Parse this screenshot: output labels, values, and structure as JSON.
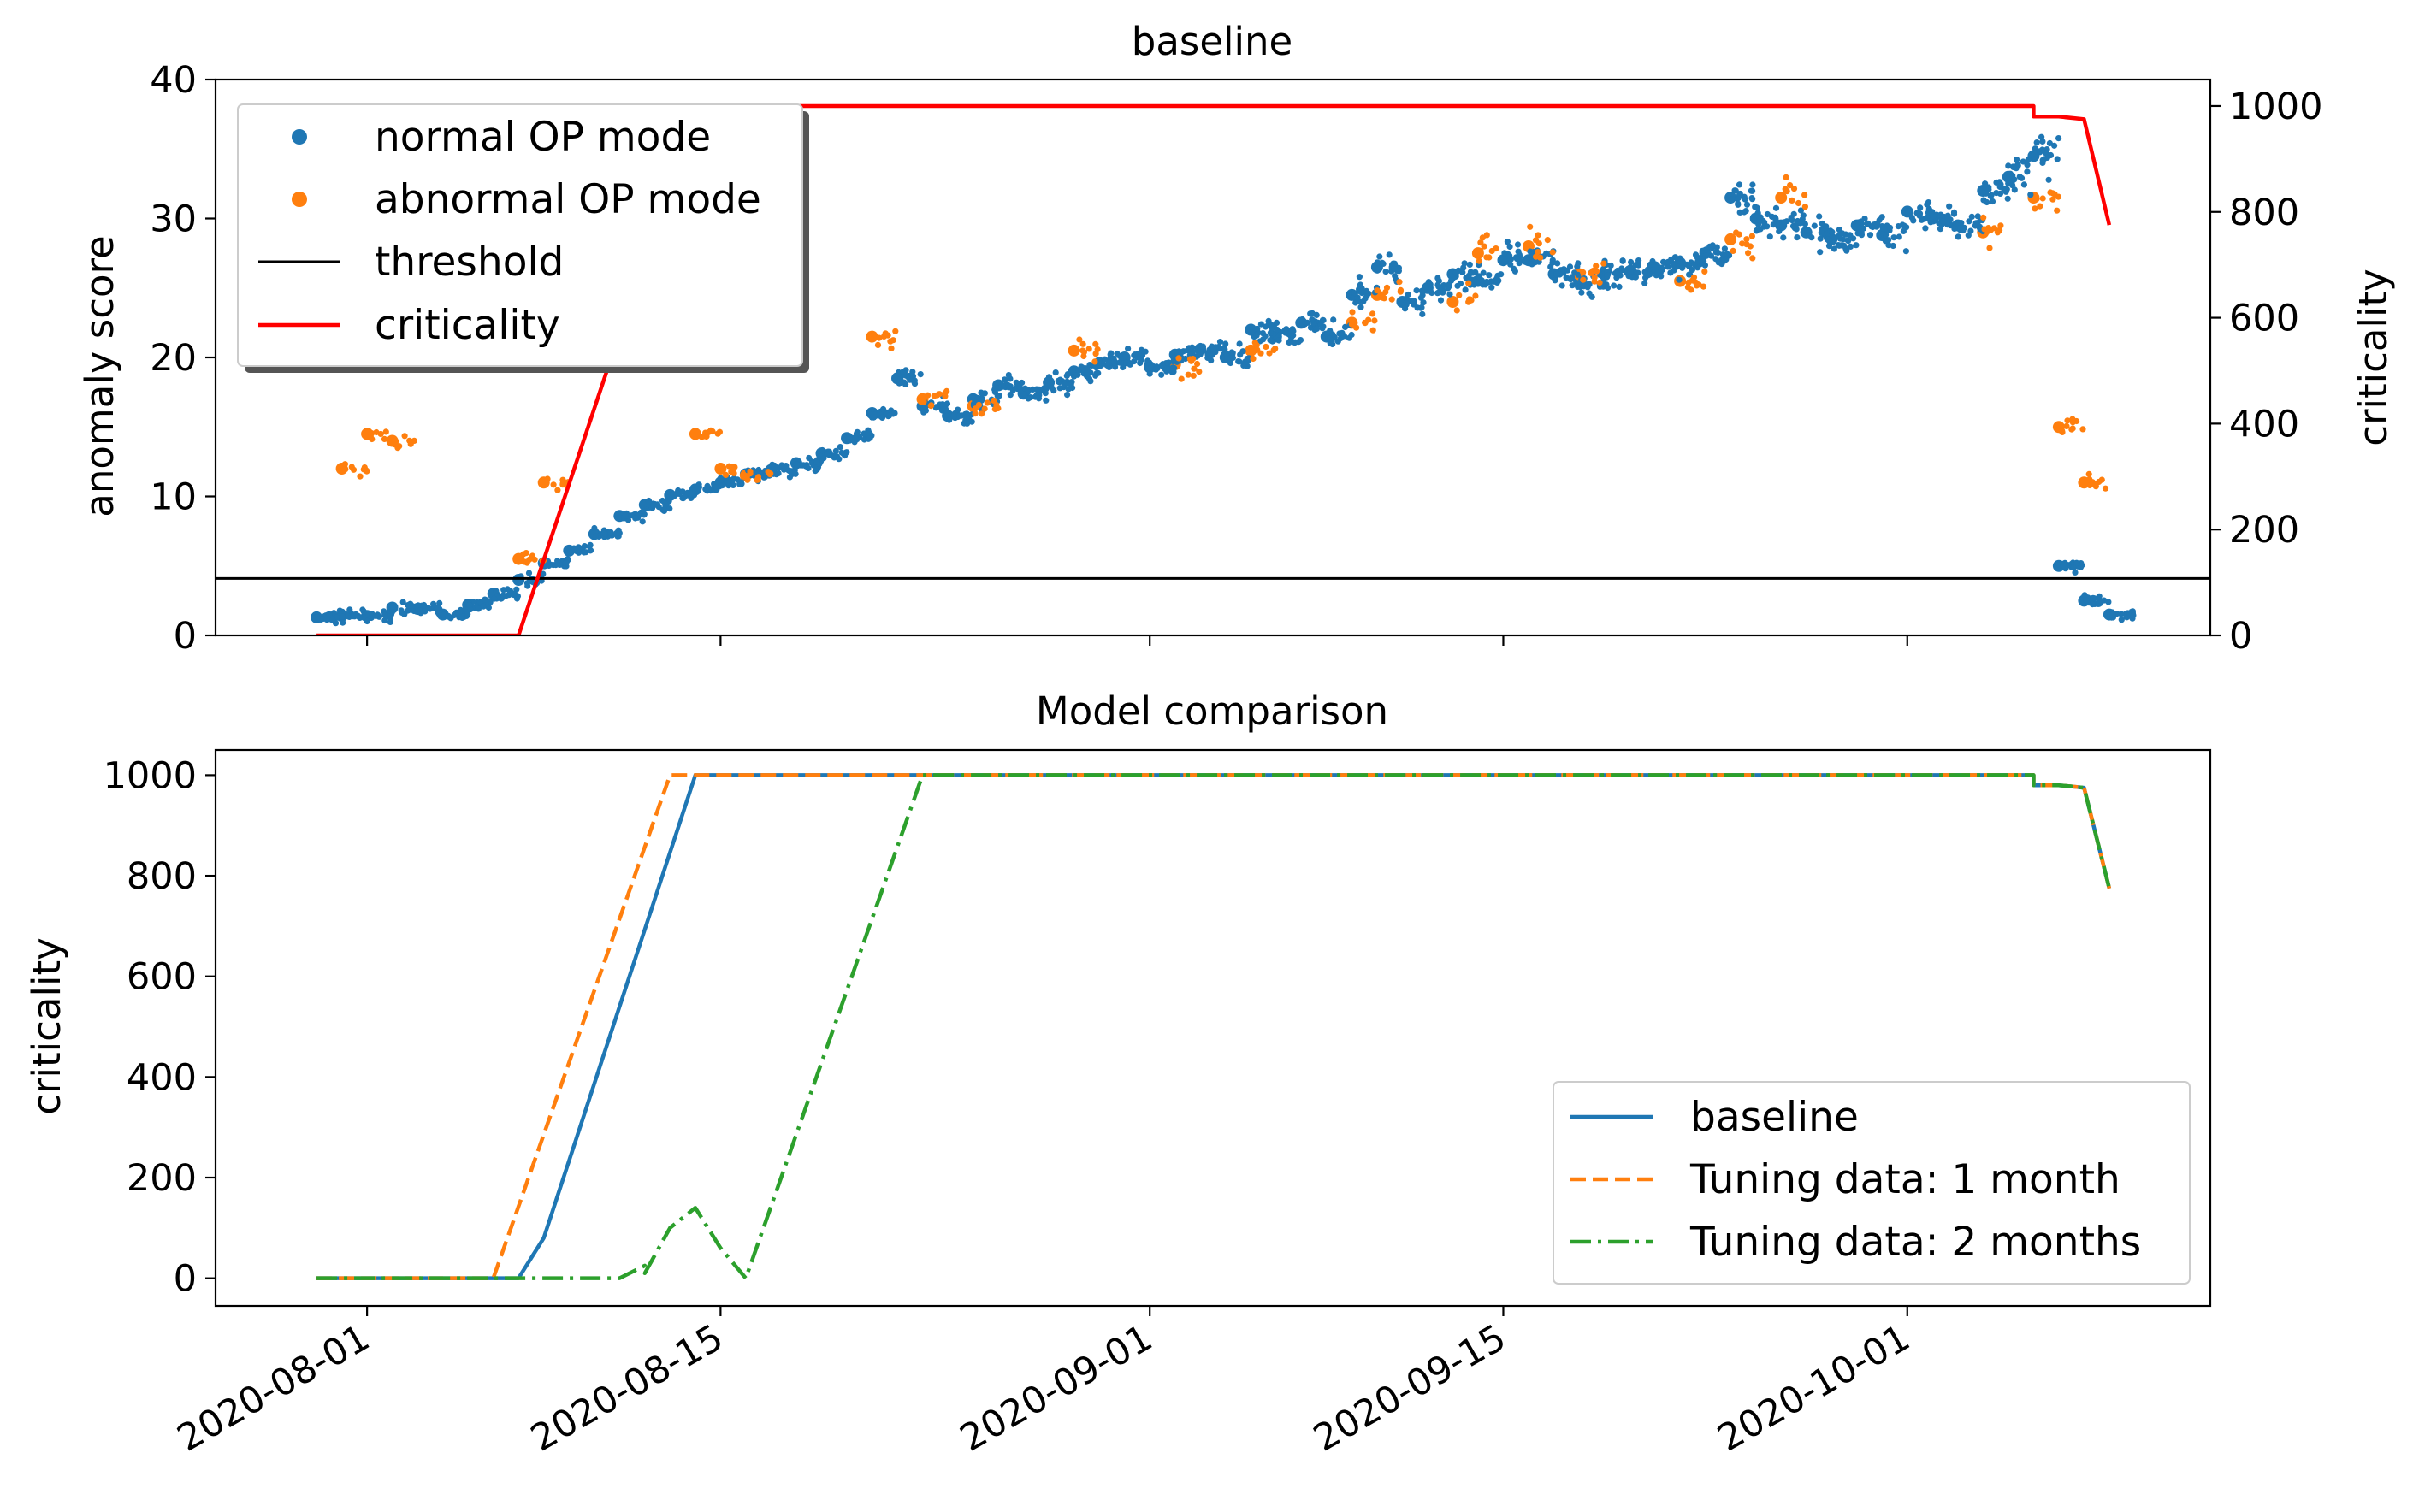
{
  "x_ticks": [
    {
      "date": "2020-08-01",
      "label": "2020-08-01"
    },
    {
      "date": "2020-08-15",
      "label": "2020-08-15"
    },
    {
      "date": "2020-09-01",
      "label": "2020-09-01"
    },
    {
      "date": "2020-09-15",
      "label": "2020-09-15"
    },
    {
      "date": "2020-10-01",
      "label": "2020-10-01"
    }
  ],
  "chart_data": [
    {
      "type": "scatter",
      "title": "baseline",
      "ylabel": "anomaly score",
      "ylabel_right": "criticality",
      "xlim": [
        "2020-07-26",
        "2020-10-13"
      ],
      "ylim": [
        0,
        40
      ],
      "ylim_right": [
        0,
        1050
      ],
      "yticks": [
        0,
        10,
        20,
        30,
        40
      ],
      "yticks_right": [
        0,
        200,
        400,
        600,
        800,
        1000
      ],
      "legend_position": "upper-left",
      "legend": [
        "normal OP mode",
        "abnormal OP mode",
        "threshold",
        "criticality"
      ],
      "threshold": 4.1,
      "colors": {
        "normal": "#1f77b4",
        "abnormal": "#ff7f0e",
        "threshold": "#000000",
        "criticality": "#ff0000"
      },
      "normal_series": {
        "name": "normal OP mode",
        "x": [
          "2020-07-30",
          "2020-07-31",
          "2020-08-01",
          "2020-08-02",
          "2020-08-03",
          "2020-08-04",
          "2020-08-05",
          "2020-08-06",
          "2020-08-07",
          "2020-08-08",
          "2020-08-09",
          "2020-08-10",
          "2020-08-11",
          "2020-08-12",
          "2020-08-13",
          "2020-08-14",
          "2020-08-15",
          "2020-08-16",
          "2020-08-17",
          "2020-08-18",
          "2020-08-19",
          "2020-08-20",
          "2020-08-21",
          "2020-08-22",
          "2020-08-23",
          "2020-08-24",
          "2020-08-25",
          "2020-08-26",
          "2020-08-27",
          "2020-08-28",
          "2020-08-29",
          "2020-08-30",
          "2020-08-31",
          "2020-09-01",
          "2020-09-02",
          "2020-09-03",
          "2020-09-04",
          "2020-09-05",
          "2020-09-06",
          "2020-09-07",
          "2020-09-08",
          "2020-09-09",
          "2020-09-10",
          "2020-09-11",
          "2020-09-12",
          "2020-09-13",
          "2020-09-14",
          "2020-09-15",
          "2020-09-16",
          "2020-09-17",
          "2020-09-18",
          "2020-09-19",
          "2020-09-20",
          "2020-09-21",
          "2020-09-22",
          "2020-09-23",
          "2020-09-24",
          "2020-09-25",
          "2020-09-26",
          "2020-09-27",
          "2020-09-28",
          "2020-09-29",
          "2020-09-30",
          "2020-10-01",
          "2020-10-02",
          "2020-10-03",
          "2020-10-04",
          "2020-10-05",
          "2020-10-06",
          "2020-10-07",
          "2020-10-08",
          "2020-10-09"
        ],
        "values": [
          1.3,
          1.4,
          1.4,
          2.0,
          1.9,
          1.5,
          2.2,
          3.0,
          4.0,
          5.2,
          6.1,
          7.3,
          8.6,
          9.4,
          10.1,
          10.5,
          11.0,
          11.6,
          11.9,
          12.4,
          13.1,
          14.2,
          16.0,
          18.5,
          16.5,
          15.8,
          17.0,
          18.0,
          17.4,
          18.2,
          19.0,
          19.6,
          20.0,
          19.3,
          20.2,
          20.6,
          20.0,
          22.0,
          21.5,
          22.5,
          21.5,
          24.5,
          26.5,
          24.0,
          25.0,
          26.0,
          25.5,
          27.0,
          27.0,
          26.0,
          25.5,
          26.0,
          26.2,
          26.5,
          26.8,
          27.5,
          31.5,
          30.0,
          29.5,
          29.0,
          28.5,
          29.5,
          28.8,
          30.5,
          30.0,
          29.5,
          32.0,
          33.0,
          34.5,
          5.0,
          2.5,
          1.5
        ]
      },
      "abnormal_series": {
        "name": "abnormal OP mode",
        "x": [
          "2020-07-31",
          "2020-08-01",
          "2020-08-02",
          "2020-08-07",
          "2020-08-08",
          "2020-08-14",
          "2020-08-15",
          "2020-08-16",
          "2020-08-21",
          "2020-08-23",
          "2020-08-25",
          "2020-08-29",
          "2020-09-02",
          "2020-09-05",
          "2020-09-09",
          "2020-09-10",
          "2020-09-13",
          "2020-09-14",
          "2020-09-16",
          "2020-09-18",
          "2020-09-22",
          "2020-09-24",
          "2020-09-26",
          "2020-10-04",
          "2020-10-06",
          "2020-10-07",
          "2020-10-08"
        ],
        "values": [
          12.0,
          14.5,
          14.0,
          5.5,
          11.0,
          14.5,
          12.0,
          11.5,
          21.5,
          17.0,
          16.5,
          20.5,
          19.5,
          20.5,
          22.5,
          24.5,
          24.0,
          27.5,
          28.0,
          26.0,
          25.5,
          28.5,
          31.5,
          29.0,
          31.5,
          15.0,
          11.0
        ]
      },
      "criticality": {
        "name": "criticality",
        "x": [
          "2020-07-30",
          "2020-08-07",
          "2020-08-14",
          "2020-10-06",
          "2020-10-06",
          "2020-10-07",
          "2020-10-08",
          "2020-10-09"
        ],
        "values": [
          0,
          0,
          1000,
          1000,
          980,
          980,
          975,
          775
        ]
      }
    },
    {
      "type": "line",
      "title": "Model comparison",
      "ylabel": "criticality",
      "xlim": [
        "2020-07-26",
        "2020-10-13"
      ],
      "ylim": [
        -55,
        1050
      ],
      "yticks": [
        0,
        200,
        400,
        600,
        800,
        1000
      ],
      "legend_position": "lower-right",
      "series": [
        {
          "name": "baseline",
          "style": "solid",
          "color": "#1f77b4",
          "x": [
            "2020-07-30",
            "2020-08-07",
            "2020-08-08",
            "2020-08-14",
            "2020-10-06",
            "2020-10-06",
            "2020-10-07",
            "2020-10-08",
            "2020-10-09"
          ],
          "values": [
            0,
            0,
            80,
            1000,
            1000,
            980,
            980,
            975,
            775
          ]
        },
        {
          "name": "Tuning data: 1 month",
          "style": "dashed",
          "color": "#ff7f0e",
          "x": [
            "2020-07-30",
            "2020-08-06",
            "2020-08-13",
            "2020-10-06",
            "2020-10-06",
            "2020-10-07",
            "2020-10-08",
            "2020-10-09"
          ],
          "values": [
            0,
            0,
            1000,
            1000,
            980,
            980,
            975,
            775
          ]
        },
        {
          "name": "Tuning data: 2 months",
          "style": "dashdot",
          "color": "#2ca02c",
          "x": [
            "2020-07-30",
            "2020-08-09",
            "2020-08-11",
            "2020-08-12",
            "2020-08-12",
            "2020-08-13",
            "2020-08-14",
            "2020-08-15",
            "2020-08-16",
            "2020-08-23",
            "2020-10-06",
            "2020-10-06",
            "2020-10-07",
            "2020-10-08",
            "2020-10-09"
          ],
          "values": [
            0,
            0,
            0,
            25,
            10,
            100,
            140,
            60,
            0,
            1000,
            1000,
            980,
            980,
            975,
            775
          ]
        }
      ]
    }
  ]
}
